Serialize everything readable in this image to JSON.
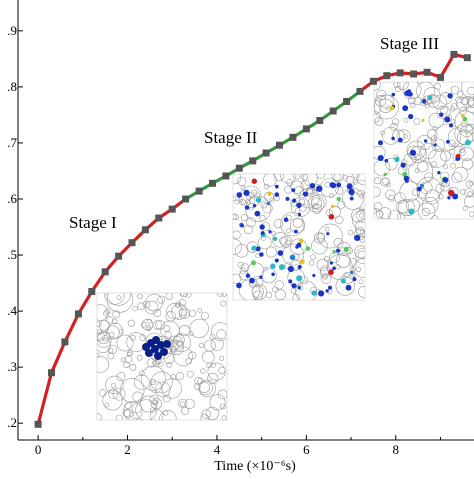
{
  "chart_data": {
    "type": "line",
    "title": "",
    "xlabel": "Time (×10⁻⁶s)",
    "ylabel": "",
    "xlim": [
      -0.45,
      9.75
    ],
    "ylim": [
      0.17,
      0.955
    ],
    "x_ticks": [
      0,
      2,
      4,
      6,
      8
    ],
    "x_tick_labels": [
      "0",
      "2",
      "4",
      "6",
      "8"
    ],
    "y_ticks": [
      0.2,
      0.3,
      0.4,
      0.5,
      0.6,
      0.7,
      0.8,
      0.9
    ],
    "y_tick_labels": [
      ".2",
      ".3",
      ".4",
      ".5",
      ".6",
      ".7",
      ".8",
      ".9"
    ],
    "grid": false,
    "series": [
      {
        "color": "#d42020",
        "x": [
          0,
          0.3,
          0.6,
          0.9,
          1.2,
          1.5,
          1.8,
          2.1,
          2.4,
          2.7,
          3.0,
          3.3
        ],
        "y": [
          0.198,
          0.29,
          0.345,
          0.395,
          0.435,
          0.47,
          0.498,
          0.522,
          0.545,
          0.566,
          0.582,
          0.6
        ]
      },
      {
        "color": "#2e9a3a",
        "x": [
          3.3,
          3.6,
          3.9,
          4.2,
          4.5,
          4.8,
          5.1,
          5.4,
          5.7,
          6.0,
          6.3,
          6.6,
          6.9,
          7.2
        ],
        "y": [
          0.6,
          0.614,
          0.628,
          0.641,
          0.655,
          0.668,
          0.682,
          0.696,
          0.71,
          0.725,
          0.74,
          0.757,
          0.774,
          0.792
        ]
      },
      {
        "color": "#d42020",
        "x": [
          7.2,
          7.5,
          7.8,
          8.1,
          8.4,
          8.7,
          9.0,
          9.3,
          9.6
        ],
        "y": [
          0.792,
          0.81,
          0.82,
          0.825,
          0.823,
          0.826,
          0.817,
          0.858,
          0.852
        ]
      }
    ],
    "marker_color": "#555555",
    "markers": {
      "x": [
        0,
        0.3,
        0.6,
        0.9,
        1.2,
        1.5,
        1.8,
        2.1,
        2.4,
        2.7,
        3.0,
        3.3,
        3.6,
        3.9,
        4.2,
        4.5,
        4.8,
        5.1,
        5.4,
        5.7,
        6.0,
        6.3,
        6.6,
        6.9,
        7.2,
        7.5,
        7.8,
        8.1,
        8.4,
        8.7,
        9.0,
        9.3,
        9.6
      ],
      "y": [
        0.198,
        0.29,
        0.345,
        0.395,
        0.435,
        0.47,
        0.498,
        0.522,
        0.545,
        0.566,
        0.582,
        0.6,
        0.614,
        0.628,
        0.641,
        0.655,
        0.668,
        0.682,
        0.696,
        0.71,
        0.725,
        0.74,
        0.757,
        0.774,
        0.792,
        0.81,
        0.82,
        0.825,
        0.823,
        0.826,
        0.817,
        0.858,
        0.852
      ]
    },
    "annotations": [
      "Stage I",
      "Stage II",
      "Stage III"
    ],
    "insets": [
      {
        "name": "stage-i-inset",
        "highlight_color": "#0a1e8a"
      },
      {
        "name": "stage-ii-inset",
        "highlight_color": "#1a35c8"
      },
      {
        "name": "stage-iii-inset",
        "highlight_color": "#1a35c8"
      }
    ]
  }
}
